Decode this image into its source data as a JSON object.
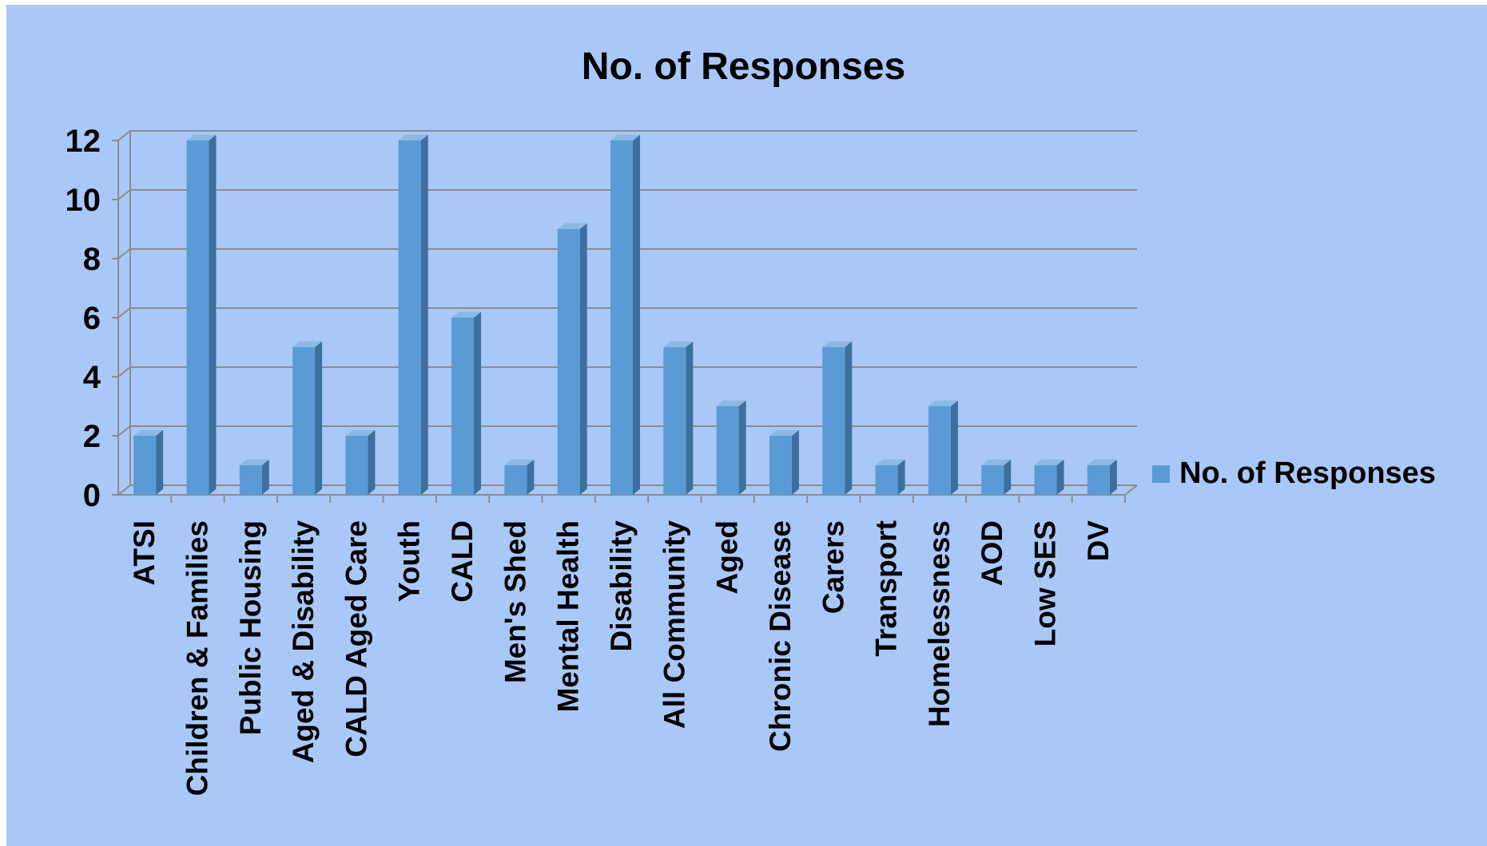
{
  "chart_data": {
    "type": "bar",
    "title": "No. of Responses",
    "categories": [
      "ATSI",
      "Children & Families",
      "Public Housing",
      "Aged & Disability",
      "CALD Aged Care",
      "Youth",
      "CALD",
      "Men's Shed",
      "Mental Health",
      "Disability",
      "All Community",
      "Aged",
      "Chronic Disease",
      "Carers",
      "Transport",
      "Homelessness",
      "AOD",
      "Low SES",
      "DV"
    ],
    "series": [
      {
        "name": "No. of Responses",
        "values": [
          2,
          12,
          1,
          5,
          2,
          12,
          6,
          1,
          9,
          12,
          5,
          3,
          2,
          5,
          1,
          3,
          1,
          1,
          1
        ]
      }
    ],
    "yticks": [
      "0",
      "2",
      "4",
      "6",
      "8",
      "10",
      "12"
    ],
    "ylim": [
      0,
      12
    ],
    "grid": true,
    "legend_position": "right",
    "colors": {
      "bar_front": "#5b9bd5",
      "bar_side": "#3d6f9e",
      "bar_top": "#8cb8e4",
      "background": "#a9c8f7",
      "gridline": "#8c8c8c"
    }
  }
}
